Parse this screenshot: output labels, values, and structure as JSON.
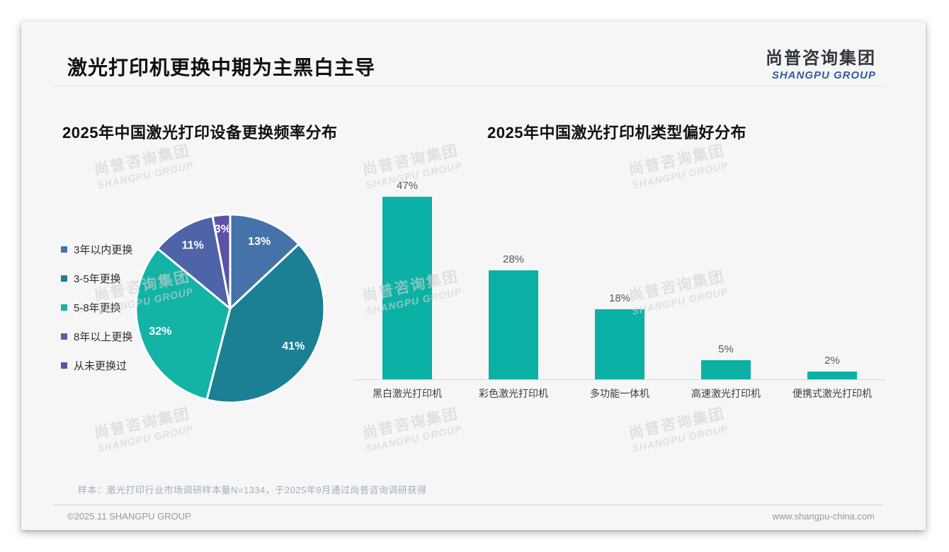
{
  "page": {
    "title": "激光打印机更换中期为主黑白主导",
    "logo": {
      "cn": "尚普咨询集团",
      "en": "SHANGPU GROUP"
    },
    "watermark": {
      "line1": "尚普咨询集团",
      "line2": "SHANGPU GROUP"
    },
    "note": "样本：激光打印行业市场调研样本量N=1334，于2025年9月通过尚普咨询调研获得",
    "footer": {
      "left": "©2025.11 SHANGPU GROUP",
      "right": "www.shangpu-china.com"
    }
  },
  "chart_data": [
    {
      "type": "pie",
      "title": "2025年中国激光打印设备更换频率分布",
      "labels": [
        "3年以内更换",
        "3-5年更换",
        "5-8年更换",
        "8年以上更换",
        "从未更换过"
      ],
      "values": [
        13,
        41,
        32,
        11,
        3
      ],
      "unit": "%",
      "colors": [
        "#4573a9",
        "#1b8093",
        "#13b3a5",
        "#4f63a8",
        "#5b52a5"
      ],
      "start_angle_deg": 0,
      "direction": "clockwise",
      "legend_position": "left",
      "slice_label_color": "#ffffff"
    },
    {
      "type": "bar",
      "title": "2025年中国激光打印机类型偏好分布",
      "categories": [
        "黑白激光打印机",
        "彩色激光打印机",
        "多功能一体机",
        "高速激光打印机",
        "便携式激光打印机"
      ],
      "values": [
        47,
        28,
        18,
        5,
        2
      ],
      "unit": "%",
      "bar_color": "#0bb1a4",
      "ylim": [
        0,
        50
      ],
      "grid": false,
      "value_labels": true,
      "axis_line_color": "#d8d8d8"
    }
  ]
}
